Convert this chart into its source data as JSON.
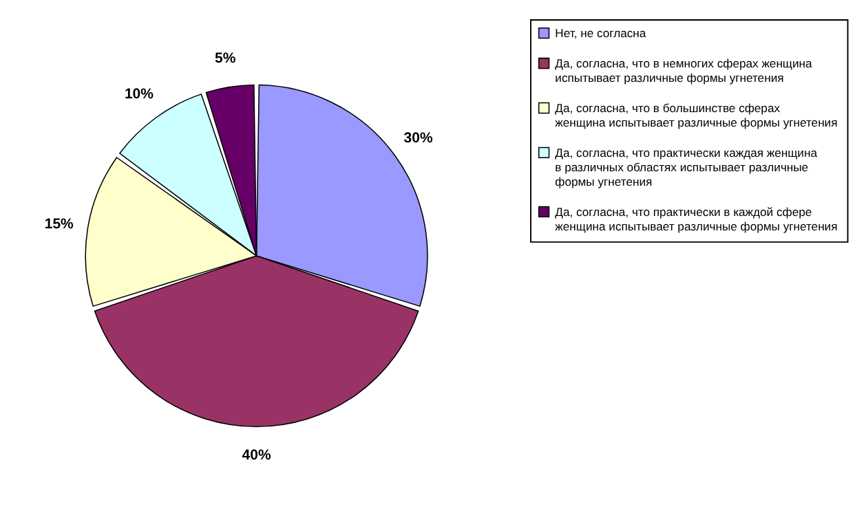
{
  "chart_data": {
    "type": "pie",
    "categories": [
      "Нет, не согласна",
      "Да, согласна, что в немногих сферах женщина испытывает различные формы угнетения",
      "Да, согласна, что в большинстве сферах женщина испытывает различные формы угнетения",
      "Да, согласна, что практически каждая женщина в различных областях испытывает различные формы угнетения",
      "Да, согласна, что практически в каждой сфере женщина испытывает различные формы угнетения"
    ],
    "values": [
      30,
      40,
      15,
      10,
      5
    ],
    "value_labels": [
      "30%",
      "40%",
      "15%",
      "10%",
      "5%"
    ],
    "colors": [
      "#9999ff",
      "#993366",
      "#ffffcc",
      "#ccffff",
      "#660066"
    ],
    "legend": "right"
  }
}
